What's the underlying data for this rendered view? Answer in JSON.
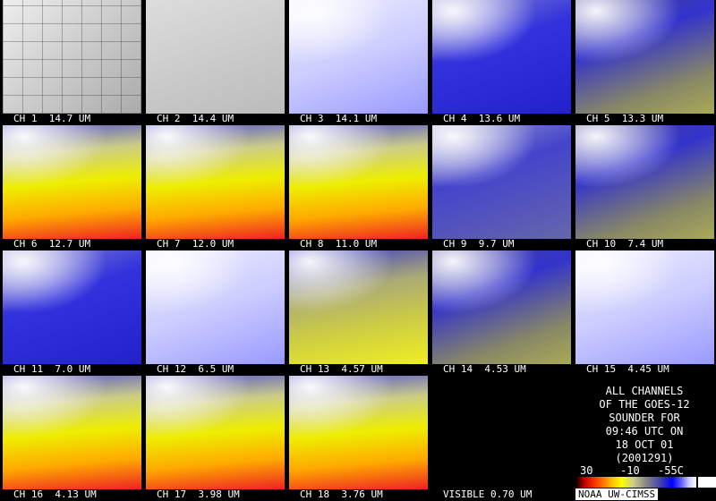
{
  "panels": [
    "CH 1  14.7 UM",
    "CH 2  14.4 UM",
    "CH 3  14.1 UM",
    "CH 4  13.6 UM",
    "CH 5  13.3 UM",
    "CH 6  12.7 UM",
    "CH 7  12.0 UM",
    "CH 8  11.0 UM",
    "CH 9  9.7 UM",
    "CH 10  7.4 UM",
    "CH 11  7.0 UM",
    "CH 12  6.5 UM",
    "CH 13  4.57 UM",
    "CH 14  4.53 UM",
    "CH 15  4.45 UM",
    "CH 16  4.13 UM",
    "CH 17  3.98 UM",
    "CH 18  3.76 UM",
    "VISIBLE 0.70 UM"
  ],
  "info": [
    "ALL CHANNELS",
    "OF THE GOES-12",
    "SOUNDER FOR",
    "09:46 UTC ON",
    "18 OCT 01",
    "(2001291)"
  ],
  "colorbar_labels": [
    "30",
    "-10",
    "-55C"
  ],
  "credit": "NOAA UW-CIMSS"
}
